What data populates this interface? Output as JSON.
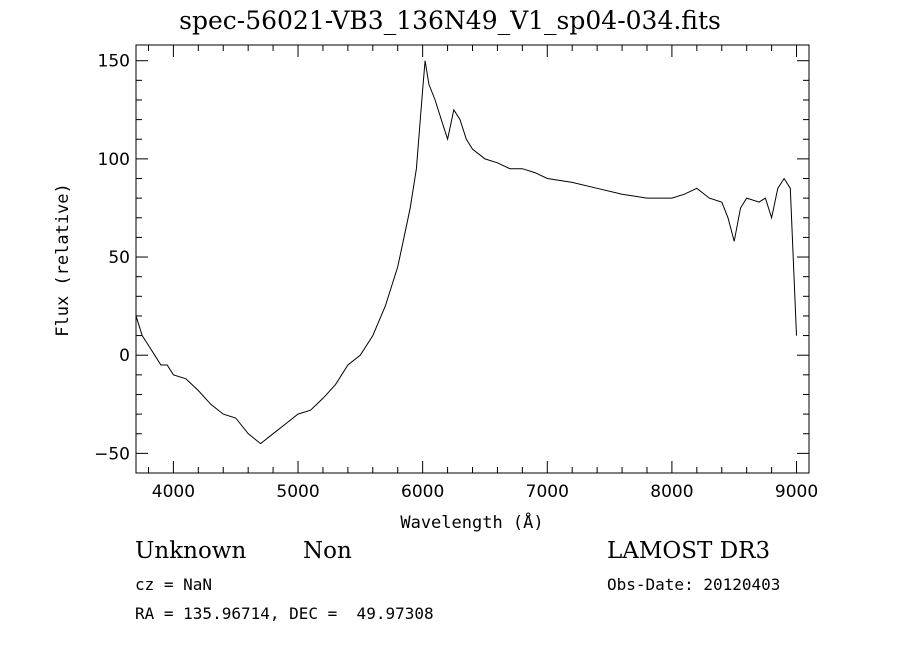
{
  "chart_data": {
    "type": "line",
    "title": "spec-56021-VB3_136N49_V1_sp04-034.fits",
    "xlabel": "Wavelength (Å)",
    "ylabel": "Flux (relative)",
    "xlim": [
      3700,
      9100
    ],
    "ylim": [
      -60,
      158
    ],
    "xticks": [
      4000,
      5000,
      6000,
      7000,
      8000,
      9000
    ],
    "yticks": [
      -50,
      0,
      50,
      100,
      150
    ],
    "grid": false,
    "series": [
      {
        "x": [
          3700,
          3750,
          3800,
          3850,
          3900,
          3950,
          4000,
          4100,
          4200,
          4300,
          4400,
          4500,
          4600,
          4700,
          4800,
          4900,
          5000,
          5100,
          5200,
          5300,
          5400,
          5500,
          5600,
          5700,
          5750,
          5800,
          5850,
          5900,
          5950,
          6000,
          6020,
          6050,
          6100,
          6150,
          6200,
          6250,
          6300,
          6350,
          6400,
          6500,
          6600,
          6700,
          6800,
          6900,
          7000,
          7200,
          7400,
          7600,
          7800,
          8000,
          8100,
          8200,
          8300,
          8400,
          8450,
          8500,
          8550,
          8600,
          8700,
          8750,
          8800,
          8850,
          8900,
          8950,
          9000
        ],
        "values": [
          20,
          10,
          5,
          0,
          -5,
          -5,
          -10,
          -12,
          -18,
          -25,
          -30,
          -32,
          -40,
          -45,
          -40,
          -35,
          -30,
          -28,
          -22,
          -15,
          -5,
          0,
          10,
          25,
          35,
          45,
          60,
          75,
          95,
          135,
          150,
          138,
          130,
          120,
          110,
          125,
          120,
          110,
          105,
          100,
          98,
          95,
          95,
          93,
          90,
          88,
          85,
          82,
          80,
          80,
          82,
          85,
          80,
          78,
          70,
          58,
          75,
          80,
          78,
          80,
          70,
          85,
          90,
          85,
          10
        ]
      }
    ]
  },
  "annotations": {
    "object_class": "Unknown",
    "object_subclass": "Non",
    "survey": "LAMOST DR3",
    "redshift": "cz = NaN",
    "obs_date": "Obs-Date: 20120403",
    "coords": "RA = 135.96714, DEC =  49.97308"
  }
}
